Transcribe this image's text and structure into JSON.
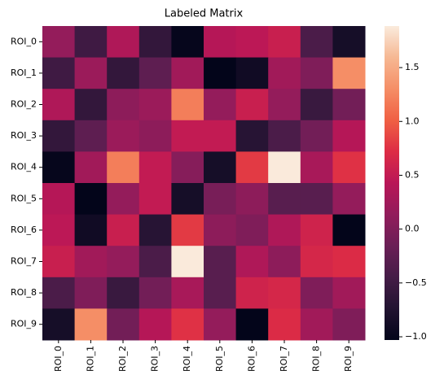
{
  "chart_data": {
    "type": "heatmap",
    "title": "Labeled Matrix",
    "x_categories": [
      "ROI_0",
      "ROI_1",
      "ROI_2",
      "ROI_3",
      "ROI_4",
      "ROI_5",
      "ROI_6",
      "ROI_7",
      "ROI_8",
      "ROI_9"
    ],
    "y_categories": [
      "ROI_0",
      "ROI_1",
      "ROI_2",
      "ROI_3",
      "ROI_4",
      "ROI_5",
      "ROI_6",
      "ROI_7",
      "ROI_8",
      "ROI_9"
    ],
    "values": [
      [
        0.15,
        -0.5,
        0.35,
        -0.6,
        -1.0,
        0.4,
        0.45,
        0.55,
        -0.4,
        -0.85
      ],
      [
        -0.5,
        0.2,
        -0.6,
        -0.25,
        0.25,
        -1.03,
        -0.9,
        0.25,
        0.0,
        1.3
      ],
      [
        0.35,
        -0.6,
        0.1,
        0.2,
        1.2,
        0.15,
        0.55,
        0.15,
        -0.55,
        -0.1
      ],
      [
        -0.6,
        -0.25,
        0.2,
        0.1,
        0.5,
        0.5,
        -0.7,
        -0.4,
        -0.1,
        0.4
      ],
      [
        -1.0,
        0.25,
        1.2,
        0.5,
        0.05,
        -0.85,
        0.8,
        1.88,
        0.3,
        0.75
      ],
      [
        0.4,
        -1.03,
        0.15,
        0.5,
        -0.85,
        -0.05,
        0.1,
        -0.3,
        -0.3,
        0.15
      ],
      [
        0.45,
        -0.9,
        0.55,
        -0.7,
        0.8,
        0.1,
        0.0,
        0.35,
        0.6,
        -1.03
      ],
      [
        0.55,
        0.25,
        0.15,
        -0.4,
        1.88,
        -0.3,
        0.35,
        0.1,
        0.65,
        0.7
      ],
      [
        -0.4,
        0.0,
        -0.55,
        -0.1,
        0.3,
        -0.3,
        0.6,
        0.65,
        0.0,
        0.25
      ],
      [
        -0.85,
        1.3,
        -0.1,
        0.4,
        0.75,
        0.15,
        -1.03,
        0.7,
        0.25,
        0.0
      ]
    ],
    "clim": [
      -1.03,
      1.886
    ],
    "cticks": [
      {
        "value": -1,
        "label": "−1.0"
      },
      {
        "value": -0.5,
        "label": "−0.5"
      },
      {
        "value": 0,
        "label": "0.0"
      },
      0.5,
      {
        "value": 1,
        "label": "1.0"
      },
      1.5
    ],
    "colormap": [
      "#03051a",
      "#221331",
      "#451c47",
      "#6a1f56",
      "#921c5b",
      "#b91657",
      "#dd2c45",
      "#f06043",
      "#f58e66",
      "#f6b893",
      "#faebdd"
    ]
  }
}
